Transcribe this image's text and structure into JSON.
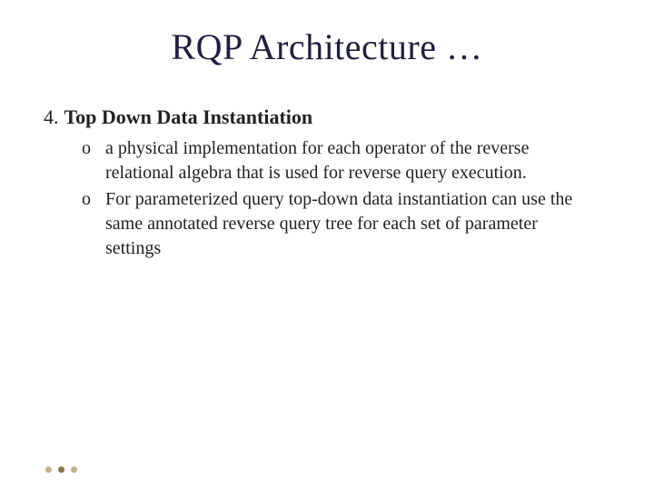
{
  "slide": {
    "title": "RQP Architecture …",
    "title_color": "#1f2040",
    "title_fontsize": 40,
    "background_color": "#ffffff",
    "text_color": "#222222",
    "body_fontsize": 20,
    "heading_fontsize": 22,
    "font_family": "Georgia, serif"
  },
  "content": {
    "number": "4.",
    "heading": "Top Down Data Instantiation",
    "bullets": [
      {
        "marker": "o",
        "text": "a physical implementation for each operator of the reverse relational algebra that is used for reverse query execution."
      },
      {
        "marker": "o",
        "text": "For parameterized query  top-down data instantiation can use the same annotated reverse query tree for each set of parameter settings"
      }
    ]
  },
  "pagination": {
    "total_dots": 3,
    "active_index": 1,
    "dot_color": "#c0b090",
    "active_dot_color": "#8a7550"
  }
}
